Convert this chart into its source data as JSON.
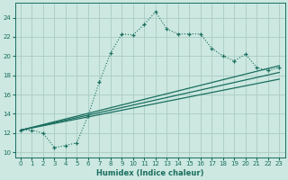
{
  "xlabel": "Humidex (Indice chaleur)",
  "bg_color": "#cce8e0",
  "grid_color": "#aaccc4",
  "line_color": "#1a6e60",
  "xlim": [
    -0.5,
    23.5
  ],
  "ylim": [
    9.5,
    25.5
  ],
  "xticks": [
    0,
    1,
    2,
    3,
    4,
    5,
    6,
    7,
    8,
    9,
    10,
    11,
    12,
    13,
    14,
    15,
    16,
    17,
    18,
    19,
    20,
    21,
    22,
    23
  ],
  "yticks": [
    10,
    12,
    14,
    16,
    18,
    20,
    22,
    24
  ],
  "curve_x": [
    0,
    1,
    2,
    3,
    4,
    5,
    6,
    7,
    8,
    9,
    10,
    11,
    12,
    13,
    14,
    15,
    16,
    17,
    18,
    19,
    20,
    21,
    22,
    23
  ],
  "curve_y": [
    12.3,
    12.3,
    12.0,
    10.5,
    10.7,
    11.0,
    13.8,
    17.3,
    20.3,
    22.3,
    22.2,
    23.3,
    24.6,
    22.8,
    22.3,
    22.3,
    22.3,
    20.8,
    20.0,
    19.5,
    20.2,
    18.8,
    18.5,
    18.8
  ],
  "line1_x": [
    0,
    23
  ],
  "line1_y": [
    12.3,
    19.0
  ],
  "line2_x": [
    0,
    23
  ],
  "line2_y": [
    12.3,
    18.3
  ],
  "line3_x": [
    0,
    23
  ],
  "line3_y": [
    12.3,
    17.6
  ]
}
